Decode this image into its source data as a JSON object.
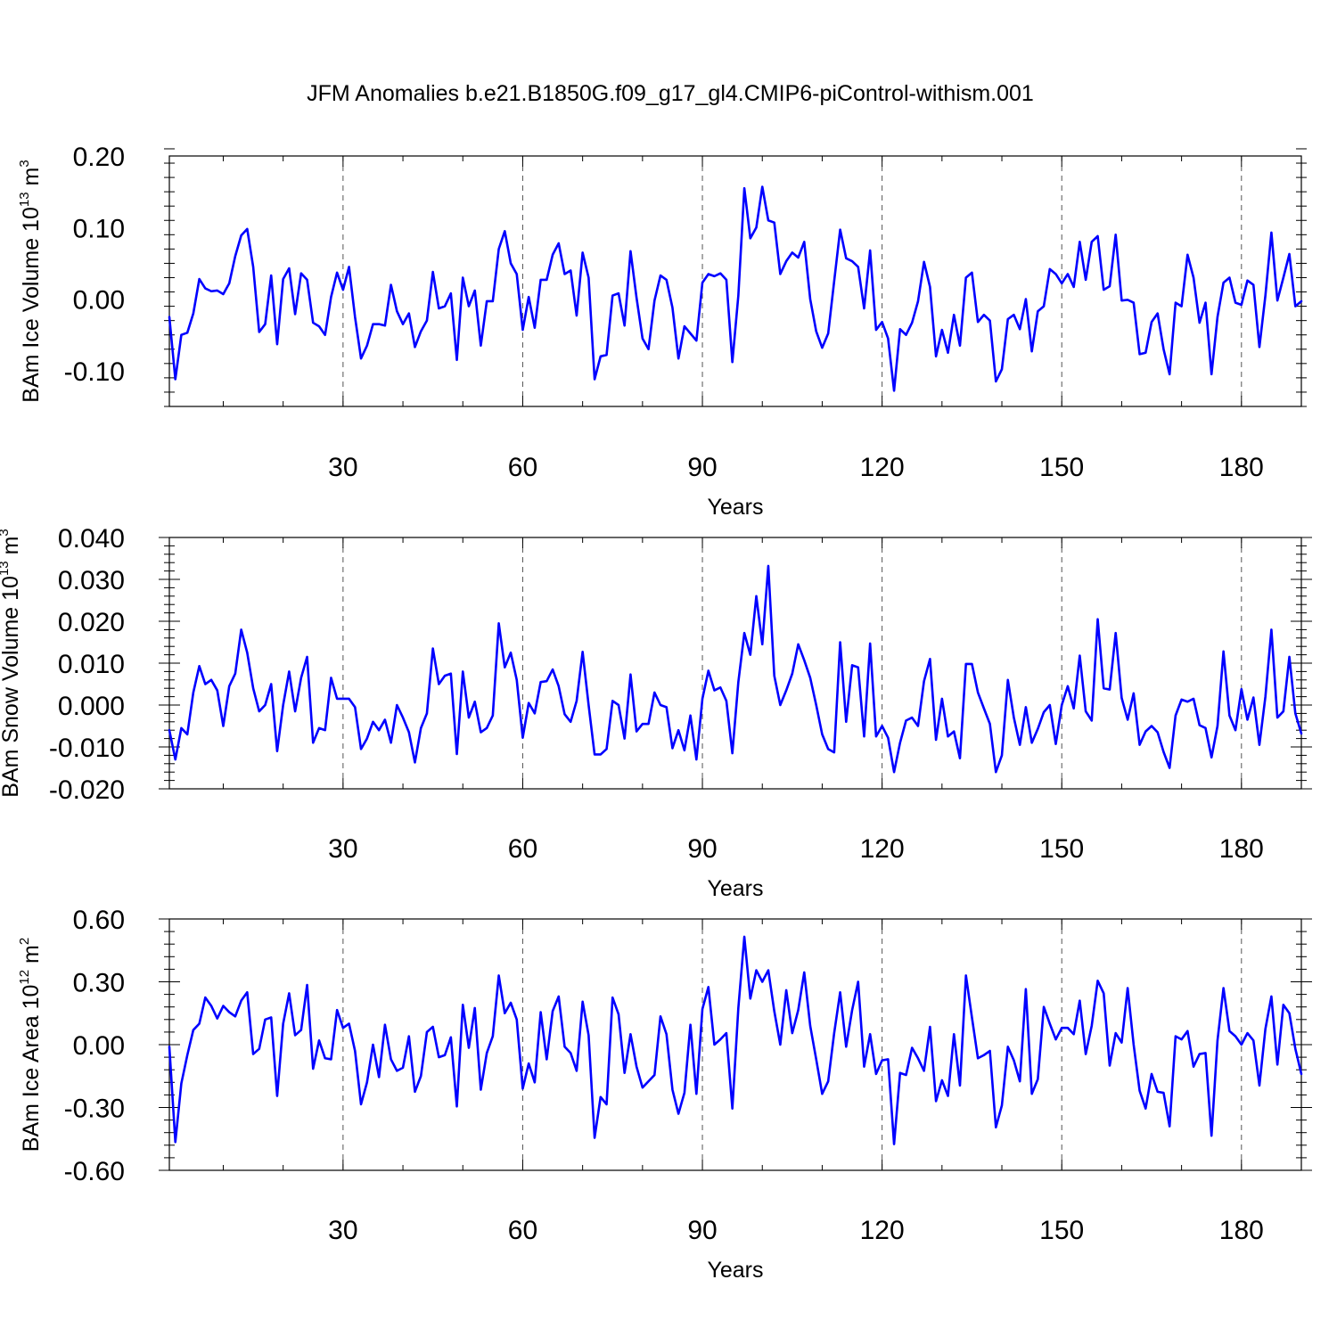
{
  "chart_data": {
    "title": "JFM Anomalies b.e21.B1850G.f09_g17_gl4.CMIP6-piControl-withism.001",
    "line_color": "#0000ff",
    "panels": [
      {
        "type": "line",
        "ylabel": "BAm Ice Volume 10",
        "ylabel_exp": "13",
        "ylabel_unit": " m",
        "ylabel_unit_exp": "3",
        "xlabel": "Years",
        "xlim": [
          1,
          190
        ],
        "ylim": [
          -0.15,
          0.2
        ],
        "yticks": [
          -0.1,
          0.0,
          0.1,
          0.2
        ],
        "ytick_labels": [
          "-0.10",
          "0.00",
          "0.10",
          "0.20"
        ],
        "xticks": [
          30,
          60,
          90,
          120,
          150,
          180
        ],
        "xtick_labels": [
          "30",
          "60",
          "90",
          "120",
          "150",
          "180"
        ],
        "values": [
          -0.025,
          -0.112,
          -0.05,
          -0.047,
          -0.02,
          0.028,
          0.015,
          0.011,
          0.012,
          0.007,
          0.022,
          0.06,
          0.089,
          0.098,
          0.045,
          -0.046,
          -0.035,
          0.033,
          -0.063,
          0.028,
          0.043,
          -0.021,
          0.036,
          0.027,
          -0.033,
          -0.038,
          -0.05,
          0.003,
          0.037,
          0.013,
          0.045,
          -0.025,
          -0.083,
          -0.065,
          -0.035,
          -0.035,
          -0.037,
          0.02,
          -0.017,
          -0.035,
          -0.02,
          -0.067,
          -0.045,
          -0.03,
          0.038,
          -0.013,
          -0.01,
          0.008,
          -0.085,
          0.03,
          -0.01,
          0.012,
          -0.065,
          -0.003,
          -0.003,
          0.07,
          0.095,
          0.05,
          0.035,
          -0.043,
          0.003,
          -0.04,
          0.027,
          0.027,
          0.062,
          0.078,
          0.035,
          0.04,
          -0.023,
          0.065,
          0.03,
          -0.112,
          -0.08,
          -0.078,
          0.005,
          0.008,
          -0.037,
          0.067,
          0.002,
          -0.055,
          -0.07,
          -0.002,
          0.033,
          0.027,
          -0.012,
          -0.083,
          -0.038,
          -0.048,
          -0.058,
          0.023,
          0.035,
          0.032,
          0.036,
          0.027,
          -0.088,
          0.005,
          0.155,
          0.085,
          0.1,
          0.157,
          0.11,
          0.107,
          0.035,
          0.053,
          0.065,
          0.058,
          0.08,
          0.0,
          -0.045,
          -0.068,
          -0.048,
          0.025,
          0.097,
          0.057,
          0.053,
          0.045,
          -0.013,
          0.068,
          -0.043,
          -0.032,
          -0.055,
          -0.128,
          -0.042,
          -0.05,
          -0.033,
          -0.003,
          0.052,
          0.017,
          -0.08,
          -0.043,
          -0.075,
          -0.022,
          -0.065,
          0.03,
          0.037,
          -0.032,
          -0.022,
          -0.03,
          -0.115,
          -0.098,
          -0.028,
          -0.022,
          -0.042,
          0.0,
          -0.073,
          -0.017,
          -0.01,
          0.042,
          0.035,
          0.022,
          0.035,
          0.017,
          0.08,
          0.027,
          0.08,
          0.088,
          0.013,
          0.018,
          0.09,
          -0.002,
          -0.001,
          -0.005,
          -0.077,
          -0.075,
          -0.032,
          -0.02,
          -0.07,
          -0.105,
          -0.005,
          -0.01,
          0.062,
          0.03,
          -0.033,
          -0.005,
          -0.105,
          -0.025,
          0.023,
          0.03,
          -0.005,
          -0.008,
          0.026,
          0.02,
          -0.067,
          0.005,
          0.093,
          -0.002,
          0.03,
          0.063,
          -0.01,
          -0.003
        ]
      },
      {
        "type": "line",
        "ylabel": "BAm Snow Volume 10",
        "ylabel_exp": "13",
        "ylabel_unit": " m",
        "ylabel_unit_exp": "3",
        "xlabel": "Years",
        "xlim": [
          1,
          190
        ],
        "ylim": [
          -0.02,
          0.04
        ],
        "yticks": [
          -0.02,
          -0.01,
          0.0,
          0.01,
          0.02,
          0.03,
          0.04
        ],
        "ytick_labels": [
          "-0.020",
          "-0.010",
          "0.000",
          "0.010",
          "0.020",
          "0.030",
          "0.040"
        ],
        "xticks": [
          30,
          60,
          90,
          120,
          150,
          180
        ],
        "xtick_labels": [
          "30",
          "60",
          "90",
          "120",
          "150",
          "180"
        ],
        "values": [
          -0.006,
          -0.013,
          -0.0055,
          -0.007,
          0.003,
          0.0093,
          0.005,
          0.006,
          0.0035,
          -0.005,
          0.0045,
          0.0075,
          0.018,
          0.0125,
          0.004,
          -0.0015,
          0.0,
          0.005,
          -0.011,
          0.0,
          0.008,
          -0.0015,
          0.0065,
          0.0115,
          -0.009,
          -0.0055,
          -0.006,
          0.0065,
          0.0015,
          0.0015,
          0.0015,
          -0.0005,
          -0.0105,
          -0.008,
          -0.004,
          -0.006,
          -0.0035,
          -0.009,
          0.0,
          -0.003,
          -0.0065,
          -0.0137,
          -0.0055,
          -0.002,
          0.0135,
          0.005,
          0.007,
          0.0075,
          -0.0117,
          0.008,
          -0.003,
          0.0008,
          -0.0065,
          -0.0055,
          -0.0025,
          0.0195,
          0.009,
          0.0125,
          0.006,
          -0.0078,
          0.0005,
          -0.002,
          0.0055,
          0.0057,
          0.0085,
          0.0045,
          -0.0022,
          -0.004,
          0.001,
          0.0127,
          0.0,
          -0.0118,
          -0.0118,
          -0.0105,
          0.001,
          0.0,
          -0.008,
          0.0073,
          -0.0063,
          -0.0045,
          -0.0045,
          0.003,
          0.0,
          -0.0005,
          -0.0103,
          -0.006,
          -0.0108,
          -0.0025,
          -0.013,
          0.0015,
          0.0082,
          0.0035,
          0.0042,
          0.001,
          -0.0115,
          0.0055,
          0.0172,
          0.012,
          0.026,
          0.0145,
          0.0332,
          0.007,
          0.0,
          0.0035,
          0.0075,
          0.0145,
          0.0107,
          0.0065,
          0.0,
          -0.007,
          -0.0105,
          -0.0113,
          0.015,
          -0.004,
          0.0095,
          0.009,
          -0.0075,
          0.0147,
          -0.0075,
          -0.005,
          -0.0078,
          -0.016,
          -0.009,
          -0.0037,
          -0.003,
          -0.005,
          0.0057,
          0.011,
          -0.0083,
          0.0015,
          -0.0075,
          -0.0063,
          -0.0127,
          0.0098,
          0.0098,
          0.003,
          -0.0008,
          -0.0045,
          -0.016,
          -0.012,
          0.006,
          -0.003,
          -0.0095,
          -0.0005,
          -0.009,
          -0.0057,
          -0.0017,
          0.0,
          -0.0093,
          0.0,
          0.0045,
          -0.0008,
          0.0118,
          -0.0015,
          -0.0037,
          0.0205,
          0.004,
          0.0037,
          0.0172,
          0.0017,
          -0.0035,
          0.0028,
          -0.0095,
          -0.0063,
          -0.005,
          -0.0065,
          -0.0112,
          -0.015,
          -0.0025,
          0.0013,
          0.0008,
          0.0015,
          -0.0048,
          -0.0055,
          -0.0125,
          -0.005,
          0.0128,
          -0.0025,
          -0.006,
          0.0038,
          -0.0035,
          0.0018,
          -0.0095,
          0.002,
          0.018,
          -0.003,
          -0.0015,
          0.0115,
          -0.002,
          -0.0068
        ]
      },
      {
        "type": "line",
        "ylabel": "BAm Ice Area 10",
        "ylabel_exp": "12",
        "ylabel_unit": " m",
        "ylabel_unit_exp": "2",
        "xlabel": "Years",
        "xlim": [
          1,
          190
        ],
        "ylim": [
          -0.6,
          0.6
        ],
        "yticks": [
          -0.6,
          -0.3,
          0.0,
          0.3,
          0.6
        ],
        "ytick_labels": [
          "-0.60",
          "-0.30",
          "0.00",
          "0.30",
          "0.60"
        ],
        "xticks": [
          30,
          60,
          90,
          120,
          150,
          180
        ],
        "xtick_labels": [
          "30",
          "60",
          "90",
          "120",
          "150",
          "180"
        ],
        "values": [
          -0.01,
          -0.465,
          -0.185,
          -0.05,
          0.07,
          0.1,
          0.225,
          0.185,
          0.125,
          0.185,
          0.155,
          0.135,
          0.21,
          0.25,
          -0.045,
          -0.02,
          0.12,
          0.13,
          -0.245,
          0.1,
          0.245,
          0.045,
          0.07,
          0.285,
          -0.115,
          0.02,
          -0.065,
          -0.07,
          0.165,
          0.08,
          0.1,
          -0.03,
          -0.285,
          -0.18,
          0.0,
          -0.155,
          0.095,
          -0.07,
          -0.125,
          -0.11,
          0.04,
          -0.225,
          -0.15,
          0.06,
          0.085,
          -0.06,
          -0.05,
          0.035,
          -0.295,
          0.19,
          -0.015,
          0.175,
          -0.215,
          -0.04,
          0.04,
          0.33,
          0.15,
          0.2,
          0.12,
          -0.21,
          -0.09,
          -0.18,
          0.155,
          -0.07,
          0.16,
          0.23,
          -0.01,
          -0.04,
          -0.125,
          0.205,
          0.045,
          -0.445,
          -0.25,
          -0.285,
          0.225,
          0.145,
          -0.135,
          0.05,
          -0.105,
          -0.205,
          -0.175,
          -0.145,
          0.135,
          0.05,
          -0.215,
          -0.33,
          -0.23,
          0.095,
          -0.235,
          0.17,
          0.275,
          0.0,
          0.025,
          0.055,
          -0.305,
          0.175,
          0.515,
          0.22,
          0.355,
          0.3,
          0.355,
          0.16,
          0.0,
          0.26,
          0.055,
          0.165,
          0.345,
          0.09,
          -0.07,
          -0.235,
          -0.175,
          0.055,
          0.25,
          -0.01,
          0.165,
          0.3,
          -0.105,
          0.05,
          -0.14,
          -0.075,
          -0.07,
          -0.475,
          -0.135,
          -0.145,
          -0.015,
          -0.065,
          -0.125,
          0.085,
          -0.27,
          -0.17,
          -0.245,
          0.05,
          -0.195,
          0.33,
          0.13,
          -0.065,
          -0.05,
          -0.03,
          -0.395,
          -0.29,
          -0.01,
          -0.075,
          -0.175,
          0.265,
          -0.235,
          -0.165,
          0.18,
          0.1,
          0.025,
          0.08,
          0.08,
          0.05,
          0.21,
          -0.045,
          0.09,
          0.305,
          0.245,
          -0.1,
          0.055,
          0.01,
          0.27,
          0.0,
          -0.22,
          -0.305,
          -0.14,
          -0.225,
          -0.23,
          -0.39,
          0.04,
          0.025,
          0.065,
          -0.105,
          -0.045,
          -0.04,
          -0.435,
          0.02,
          0.27,
          0.065,
          0.04,
          0.0,
          0.055,
          0.02,
          -0.195,
          0.075,
          0.23,
          -0.095,
          0.19,
          0.15,
          -0.02,
          -0.14
        ]
      }
    ]
  }
}
